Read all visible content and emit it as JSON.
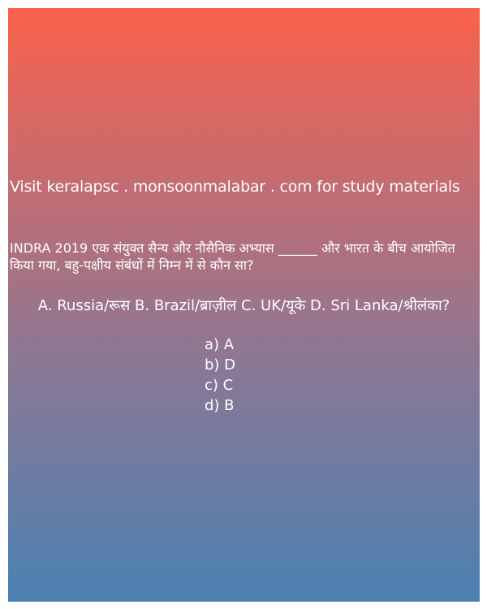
{
  "promo_text": "Visit keralapsc . monsoonmalabar . com for study materials",
  "question_text": "INDRA 2019 एक संयुक्त सैन्य और नौसैनिक अभ्यास ______ और भारत के बीच आयोजित किया गया, बहु-पक्षीय संबंधों में निम्न में से कौन सा?",
  "options_line": "A. Russia/रूस  B. Brazil/ब्राज़ील  C. UK/यूके  D. Sri Lanka/श्रीलंका?",
  "answers": [
    {
      "label": "a) A"
    },
    {
      "label": "b) D"
    },
    {
      "label": "c) C"
    },
    {
      "label": "d) B"
    }
  ]
}
